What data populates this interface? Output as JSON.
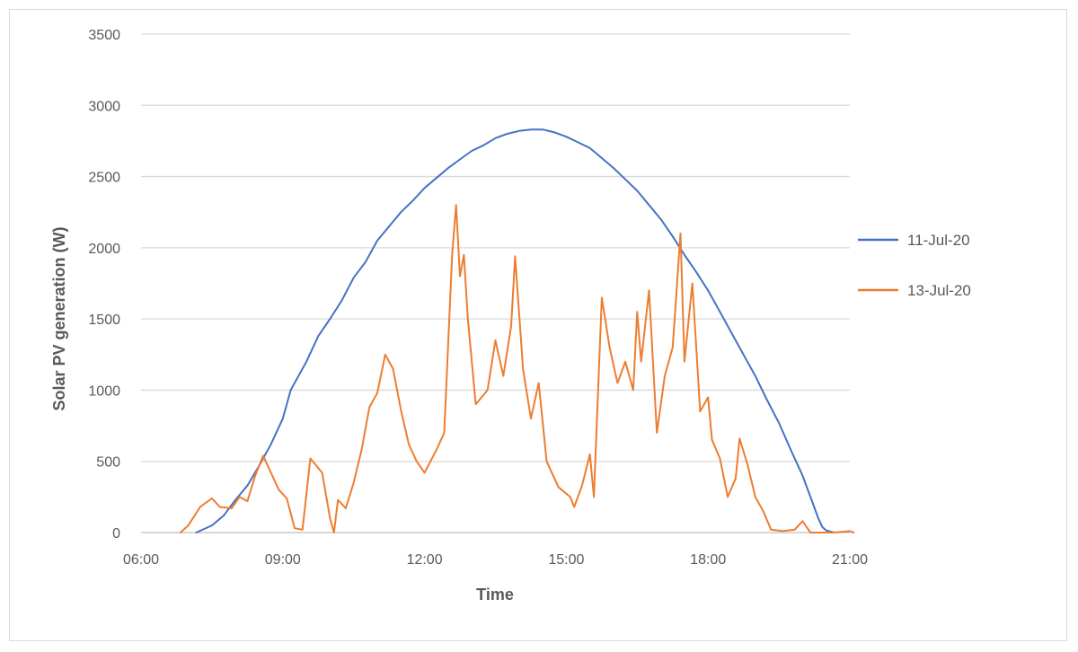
{
  "chart_data": {
    "type": "line",
    "title": "",
    "xlabel": "Time",
    "ylabel": "Solar PV generation (W)",
    "xlim": [
      "06:00",
      "21:00"
    ],
    "ylim": [
      0,
      3500
    ],
    "x_ticks": [
      "06:00",
      "09:00",
      "12:00",
      "15:00",
      "18:00",
      "21:00"
    ],
    "y_ticks": [
      0,
      500,
      1000,
      1500,
      2000,
      2500,
      3000,
      3500
    ],
    "grid": "horizontal",
    "legend_position": "right",
    "series": [
      {
        "name": "11-Jul-20",
        "color": "#4472c4",
        "points": [
          [
            "07:10",
            0
          ],
          [
            "07:30",
            50
          ],
          [
            "07:45",
            120
          ],
          [
            "08:00",
            230
          ],
          [
            "08:15",
            330
          ],
          [
            "08:30",
            470
          ],
          [
            "08:45",
            620
          ],
          [
            "09:00",
            800
          ],
          [
            "09:10",
            1000
          ],
          [
            "09:30",
            1200
          ],
          [
            "09:45",
            1380
          ],
          [
            "10:00",
            1500
          ],
          [
            "10:15",
            1630
          ],
          [
            "10:30",
            1790
          ],
          [
            "10:45",
            1900
          ],
          [
            "11:00",
            2050
          ],
          [
            "11:15",
            2150
          ],
          [
            "11:30",
            2250
          ],
          [
            "11:45",
            2330
          ],
          [
            "12:00",
            2420
          ],
          [
            "12:15",
            2490
          ],
          [
            "12:30",
            2560
          ],
          [
            "12:45",
            2620
          ],
          [
            "13:00",
            2680
          ],
          [
            "13:15",
            2720
          ],
          [
            "13:30",
            2770
          ],
          [
            "13:45",
            2800
          ],
          [
            "14:00",
            2820
          ],
          [
            "14:15",
            2830
          ],
          [
            "14:30",
            2830
          ],
          [
            "14:45",
            2810
          ],
          [
            "15:00",
            2780
          ],
          [
            "15:15",
            2740
          ],
          [
            "15:30",
            2700
          ],
          [
            "15:45",
            2630
          ],
          [
            "16:00",
            2560
          ],
          [
            "16:15",
            2480
          ],
          [
            "16:30",
            2400
          ],
          [
            "16:45",
            2300
          ],
          [
            "17:00",
            2200
          ],
          [
            "17:15",
            2080
          ],
          [
            "17:30",
            1950
          ],
          [
            "17:45",
            1830
          ],
          [
            "18:00",
            1700
          ],
          [
            "18:15",
            1550
          ],
          [
            "18:30",
            1400
          ],
          [
            "18:45",
            1250
          ],
          [
            "19:00",
            1100
          ],
          [
            "19:15",
            930
          ],
          [
            "19:30",
            770
          ],
          [
            "19:45",
            580
          ],
          [
            "20:00",
            400
          ],
          [
            "20:10",
            250
          ],
          [
            "20:20",
            100
          ],
          [
            "20:25",
            40
          ],
          [
            "20:30",
            15
          ],
          [
            "20:40",
            0
          ]
        ]
      },
      {
        "name": "13-Jul-20",
        "color": "#ed7d31",
        "points": [
          [
            "06:50",
            0
          ],
          [
            "07:00",
            50
          ],
          [
            "07:15",
            180
          ],
          [
            "07:30",
            240
          ],
          [
            "07:40",
            180
          ],
          [
            "07:55",
            170
          ],
          [
            "08:05",
            250
          ],
          [
            "08:15",
            220
          ],
          [
            "08:25",
            400
          ],
          [
            "08:35",
            540
          ],
          [
            "08:45",
            420
          ],
          [
            "08:55",
            300
          ],
          [
            "09:05",
            240
          ],
          [
            "09:15",
            30
          ],
          [
            "09:25",
            20
          ],
          [
            "09:35",
            520
          ],
          [
            "09:50",
            420
          ],
          [
            "10:00",
            100
          ],
          [
            "10:05",
            0
          ],
          [
            "10:10",
            230
          ],
          [
            "10:20",
            170
          ],
          [
            "10:30",
            350
          ],
          [
            "10:40",
            580
          ],
          [
            "10:50",
            880
          ],
          [
            "11:00",
            980
          ],
          [
            "11:10",
            1250
          ],
          [
            "11:20",
            1150
          ],
          [
            "11:30",
            860
          ],
          [
            "11:40",
            620
          ],
          [
            "11:50",
            500
          ],
          [
            "12:00",
            420
          ],
          [
            "12:15",
            580
          ],
          [
            "12:25",
            700
          ],
          [
            "12:35",
            1950
          ],
          [
            "12:40",
            2300
          ],
          [
            "12:45",
            1800
          ],
          [
            "12:50",
            1950
          ],
          [
            "12:55",
            1500
          ],
          [
            "13:05",
            900
          ],
          [
            "13:20",
            1000
          ],
          [
            "13:30",
            1350
          ],
          [
            "13:40",
            1100
          ],
          [
            "13:50",
            1450
          ],
          [
            "13:55",
            1940
          ],
          [
            "14:05",
            1150
          ],
          [
            "14:15",
            800
          ],
          [
            "14:25",
            1050
          ],
          [
            "14:35",
            500
          ],
          [
            "14:50",
            320
          ],
          [
            "15:05",
            250
          ],
          [
            "15:10",
            180
          ],
          [
            "15:20",
            330
          ],
          [
            "15:30",
            550
          ],
          [
            "15:35",
            250
          ],
          [
            "15:45",
            1650
          ],
          [
            "15:55",
            1300
          ],
          [
            "16:05",
            1050
          ],
          [
            "16:15",
            1200
          ],
          [
            "16:25",
            1000
          ],
          [
            "16:30",
            1550
          ],
          [
            "16:35",
            1200
          ],
          [
            "16:45",
            1700
          ],
          [
            "16:55",
            700
          ],
          [
            "17:05",
            1100
          ],
          [
            "17:15",
            1300
          ],
          [
            "17:25",
            2100
          ],
          [
            "17:30",
            1200
          ],
          [
            "17:40",
            1750
          ],
          [
            "17:50",
            850
          ],
          [
            "18:00",
            950
          ],
          [
            "18:05",
            650
          ],
          [
            "18:15",
            520
          ],
          [
            "18:25",
            250
          ],
          [
            "18:35",
            380
          ],
          [
            "18:40",
            660
          ],
          [
            "18:50",
            480
          ],
          [
            "19:00",
            250
          ],
          [
            "19:10",
            150
          ],
          [
            "19:20",
            20
          ],
          [
            "19:35",
            10
          ],
          [
            "19:50",
            20
          ],
          [
            "20:00",
            80
          ],
          [
            "20:10",
            0
          ],
          [
            "20:40",
            0
          ],
          [
            "21:00",
            10
          ],
          [
            "21:05",
            0
          ]
        ]
      }
    ]
  }
}
